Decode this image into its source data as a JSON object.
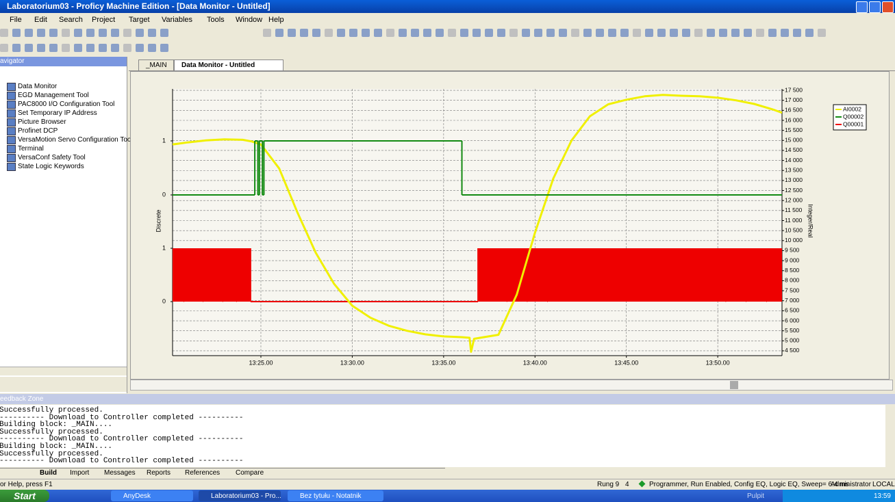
{
  "window": {
    "title": "Laboratorium03 - Proficy Machine Edition - [Data Monitor - Untitled]"
  },
  "menu": [
    "File",
    "Edit",
    "Search",
    "Project",
    "Target",
    "Variables",
    "Tools",
    "Window",
    "Help"
  ],
  "navigator": {
    "title": "avigator",
    "items": [
      "Data Monitor",
      "EGD Management Tool",
      "PAC8000 I/O Configuration Tool",
      "Set Temporary IP Address",
      "Picture Browser",
      "Profinet DCP",
      "VersaMotion Servo Configuration Tool",
      "Terminal",
      "VersaConf Safety Tool",
      "State Logic Keywords"
    ]
  },
  "tabs": [
    "_MAIN",
    "Data Monitor - Untitled"
  ],
  "chart_data": {
    "type": "line",
    "ylabel": "Discrete",
    "y2label": "Integer/Real",
    "grid": true,
    "xlim": [
      "13:20:10",
      "13:53:31"
    ],
    "xticks": [
      {
        "value": "13:25:00",
        "label": "13:25.00"
      },
      {
        "value": "13:30:00",
        "label": "13:30.00"
      },
      {
        "value": "13:35:00",
        "label": "13:35.00"
      },
      {
        "value": "13:40:00",
        "label": "13:40.00"
      },
      {
        "value": "13:45:00",
        "label": "13:45.00"
      },
      {
        "value": "13:50:00",
        "label": "13:50.00"
      }
    ],
    "lanes": [
      {
        "ylim": [
          0,
          1
        ],
        "yticks": [
          0,
          1
        ]
      },
      {
        "ylim": [
          0,
          1
        ],
        "yticks": [
          0,
          1
        ]
      }
    ],
    "y2lim": [
      4260,
      17570
    ],
    "y2ticks": [
      {
        "value": 4500,
        "label": "4 500"
      },
      {
        "value": 5000,
        "label": "5 000"
      },
      {
        "value": 5500,
        "label": "5 500"
      },
      {
        "value": 6000,
        "label": "6 000"
      },
      {
        "value": 6500,
        "label": "6 500"
      },
      {
        "value": 7000,
        "label": "7 000"
      },
      {
        "value": 7500,
        "label": "7 500"
      },
      {
        "value": 8000,
        "label": "8 000"
      },
      {
        "value": 8500,
        "label": "8 500"
      },
      {
        "value": 9000,
        "label": "9 000"
      },
      {
        "value": 9500,
        "label": "9 500"
      },
      {
        "value": 10000,
        "label": "10 000"
      },
      {
        "value": 10500,
        "label": "10 500"
      },
      {
        "value": 11000,
        "label": "11 000"
      },
      {
        "value": 11500,
        "label": "11 500"
      },
      {
        "value": 12000,
        "label": "12 000"
      },
      {
        "value": 12500,
        "label": "12 500"
      },
      {
        "value": 13000,
        "label": "13 000"
      },
      {
        "value": 13500,
        "label": "13 500"
      },
      {
        "value": 14000,
        "label": "14 000"
      },
      {
        "value": 14500,
        "label": "14 500"
      },
      {
        "value": 15000,
        "label": "15 000"
      },
      {
        "value": 15500,
        "label": "15 500"
      },
      {
        "value": 16000,
        "label": "16 000"
      },
      {
        "value": 16500,
        "label": "16 500"
      },
      {
        "value": 17000,
        "label": "17 000"
      },
      {
        "value": 17500,
        "label": "17 500"
      }
    ],
    "series": [
      {
        "name": "AI0002",
        "color": "#f0f000",
        "axis": "y2",
        "x": [
          "13:20:10",
          "13:21:00",
          "13:22:00",
          "13:23:00",
          "13:24:00",
          "13:24:30",
          "13:25:00",
          "13:26:00",
          "13:27:00",
          "13:28:00",
          "13:29:00",
          "13:30:00",
          "13:31:00",
          "13:32:00",
          "13:33:00",
          "13:34:00",
          "13:35:00",
          "13:36:00",
          "13:36:25",
          "13:36:30",
          "13:36:40",
          "13:37:00",
          "13:38:00",
          "13:39:00",
          "13:40:00",
          "13:41:00",
          "13:42:00",
          "13:43:00",
          "13:44:00",
          "13:45:00",
          "13:46:00",
          "13:47:00",
          "13:48:00",
          "13:49:00",
          "13:50:00",
          "13:51:00",
          "13:52:00",
          "13:53:00",
          "13:53:31"
        ],
        "values": [
          14800,
          14900,
          15000,
          15050,
          15030,
          14950,
          14800,
          13600,
          11400,
          9400,
          7850,
          6750,
          6150,
          5750,
          5500,
          5320,
          5220,
          5180,
          5150,
          4450,
          5100,
          5150,
          5300,
          7300,
          10400,
          13100,
          15000,
          16200,
          16800,
          17030,
          17200,
          17270,
          17230,
          17200,
          17130,
          17000,
          16820,
          16550,
          16380
        ]
      },
      {
        "name": "Q00002",
        "color": "#128a12",
        "lane": 0,
        "step": true,
        "x": [
          "13:20:10",
          "13:24:40",
          "13:24:50",
          "13:24:55",
          "13:25:05",
          "13:25:10",
          "13:36:00",
          "13:53:31"
        ],
        "values": [
          0,
          1,
          0,
          1,
          0,
          1,
          0,
          0
        ]
      },
      {
        "name": "Q00001",
        "color": "#ee0000",
        "lane": 1,
        "step": true,
        "fill": true,
        "x": [
          "13:20:10",
          "13:20:46",
          "13:20:47",
          "13:21:49",
          "13:21:50",
          "13:22:54",
          "13:22:55",
          "13:23:39",
          "13:23:40",
          "13:24:26",
          "13:36:53",
          "13:38:27",
          "13:38:28",
          "13:39:34",
          "13:39:35",
          "13:40:41",
          "13:40:42",
          "13:50:26",
          "13:50:27",
          "13:51:33",
          "13:51:34",
          "13:52:40",
          "13:52:41",
          "13:53:31"
        ],
        "values": [
          1,
          0,
          1,
          0,
          1,
          0,
          1,
          0,
          1,
          0,
          1,
          0,
          1,
          0,
          1,
          0,
          1,
          0,
          1,
          0,
          1,
          0,
          1,
          1
        ]
      }
    ]
  },
  "feedback": {
    "title": "eedback Zone",
    "lines": [
      "Successfully processed.",
      "---------- Download to Controller completed ----------",
      "Building block: _MAIN....",
      "Successfully processed.",
      "---------- Download to Controller completed ----------",
      "Building block: _MAIN....",
      "Successfully processed.",
      "---------- Download to Controller completed ----------"
    ],
    "tabs": [
      "Build",
      "Import",
      "Messages",
      "Reports",
      "References",
      "Compare"
    ]
  },
  "status": {
    "help": "or Help, press F1",
    "rung": "Rung 9",
    "count": "4",
    "state": "Programmer, Run Enabled, Config EQ, Logic EQ, Sweep= 6.4 ms",
    "user": "Administrator",
    "location": "LOCAL"
  },
  "taskbar": {
    "start": "Start",
    "items": [
      "AnyDesk",
      "Laboratorium03 - Pro...",
      "Bez tytułu - Notatnik"
    ],
    "desktop": "Pulpit",
    "clock": "13:59"
  }
}
